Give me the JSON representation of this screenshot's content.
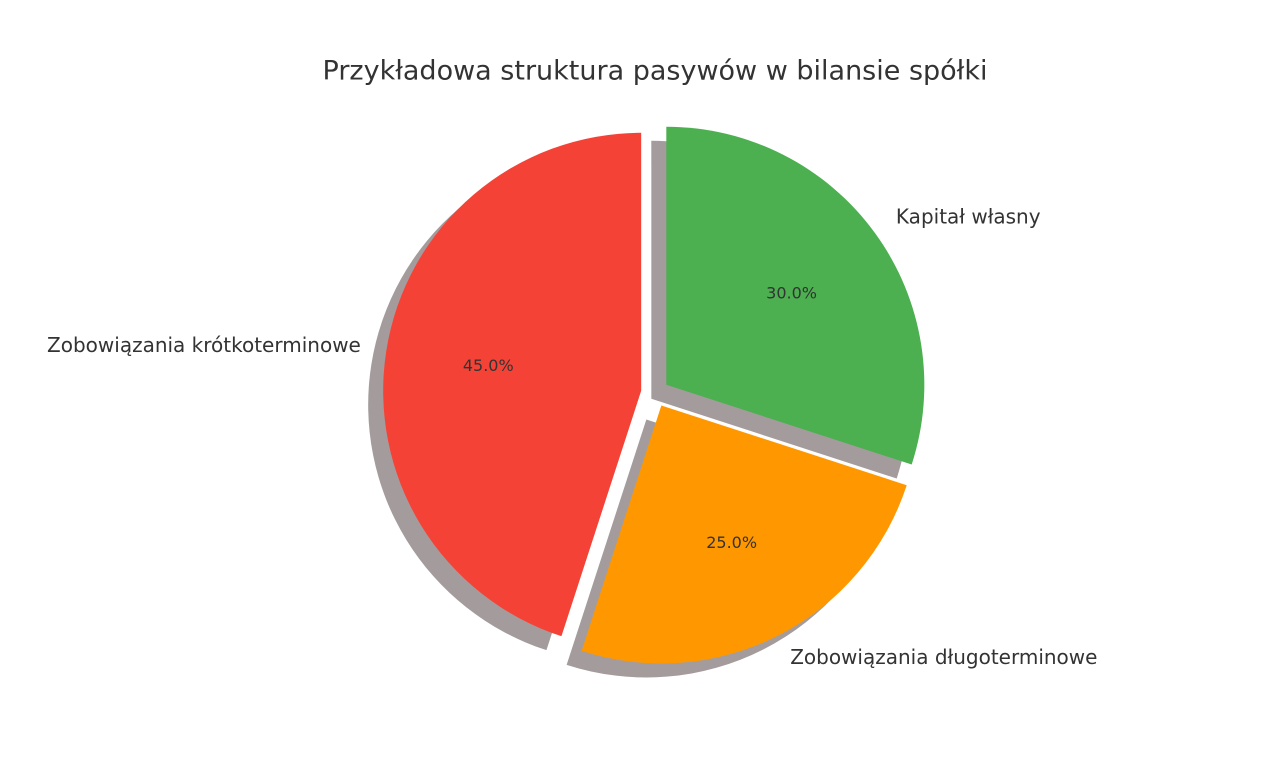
{
  "chart_data": {
    "type": "pie",
    "title": "Przykładowa struktura pasywów w bilansie spółki",
    "categories": [
      "Zobowiązania krótkoterminowe",
      "Zobowiązania długoterminowe",
      "Kapitał własny"
    ],
    "values": [
      45,
      25,
      30
    ],
    "value_labels": [
      "45.0%",
      "25.0%",
      "30.0%"
    ],
    "colors": [
      "#f44336",
      "#ff9800",
      "#4caf50"
    ],
    "shadow": true
  }
}
